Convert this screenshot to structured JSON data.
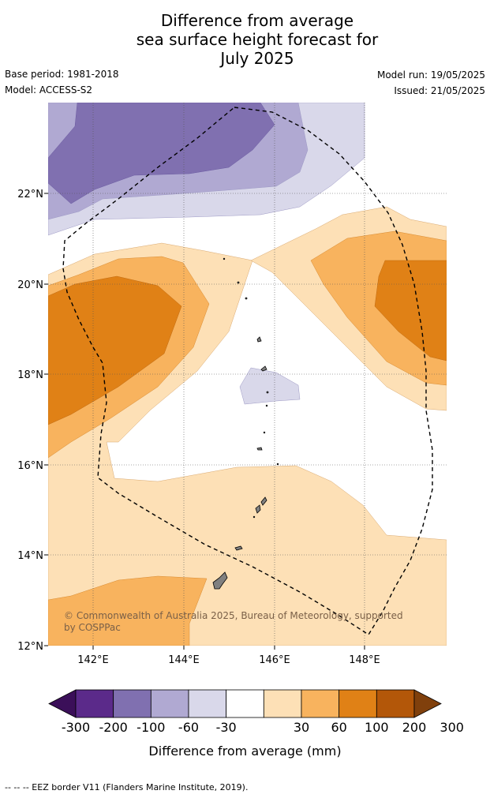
{
  "title": {
    "line1": "Difference from average",
    "line2": "sea surface height forecast for",
    "line3": "July 2025"
  },
  "meta": {
    "base_period": "Base period: 1981-2018",
    "model": "Model: ACCESS-S2",
    "model_run": "Model run: 19/05/2025",
    "issued": "Issued: 21/05/2025"
  },
  "map": {
    "lat_labels": [
      "22°N",
      "20°N",
      "18°N",
      "16°N",
      "14°N",
      "12°N"
    ],
    "lon_labels": [
      "142°E",
      "144°E",
      "146°E",
      "148°E"
    ],
    "copyright": [
      "© Commonwealth of Australia 2025, Bureau of Meteorology, supported",
      "by COSPPac"
    ]
  },
  "colorbar": {
    "ticks": [
      "-300",
      "-200",
      "-100",
      "-60",
      "-30",
      "30",
      "60",
      "100",
      "200",
      "300"
    ],
    "colors": [
      "#3b0f59",
      "#5b2a8a",
      "#8070b0",
      "#b0a9d2",
      "#d9d8ea",
      "#ffffff",
      "#fde0b6",
      "#f8b35e",
      "#e08116",
      "#b35709",
      "#80400c"
    ],
    "label": "Difference from average (mm)"
  },
  "footnote": "-- -- -- EEZ border V11 (Flanders Marine Institute, 2019)."
}
